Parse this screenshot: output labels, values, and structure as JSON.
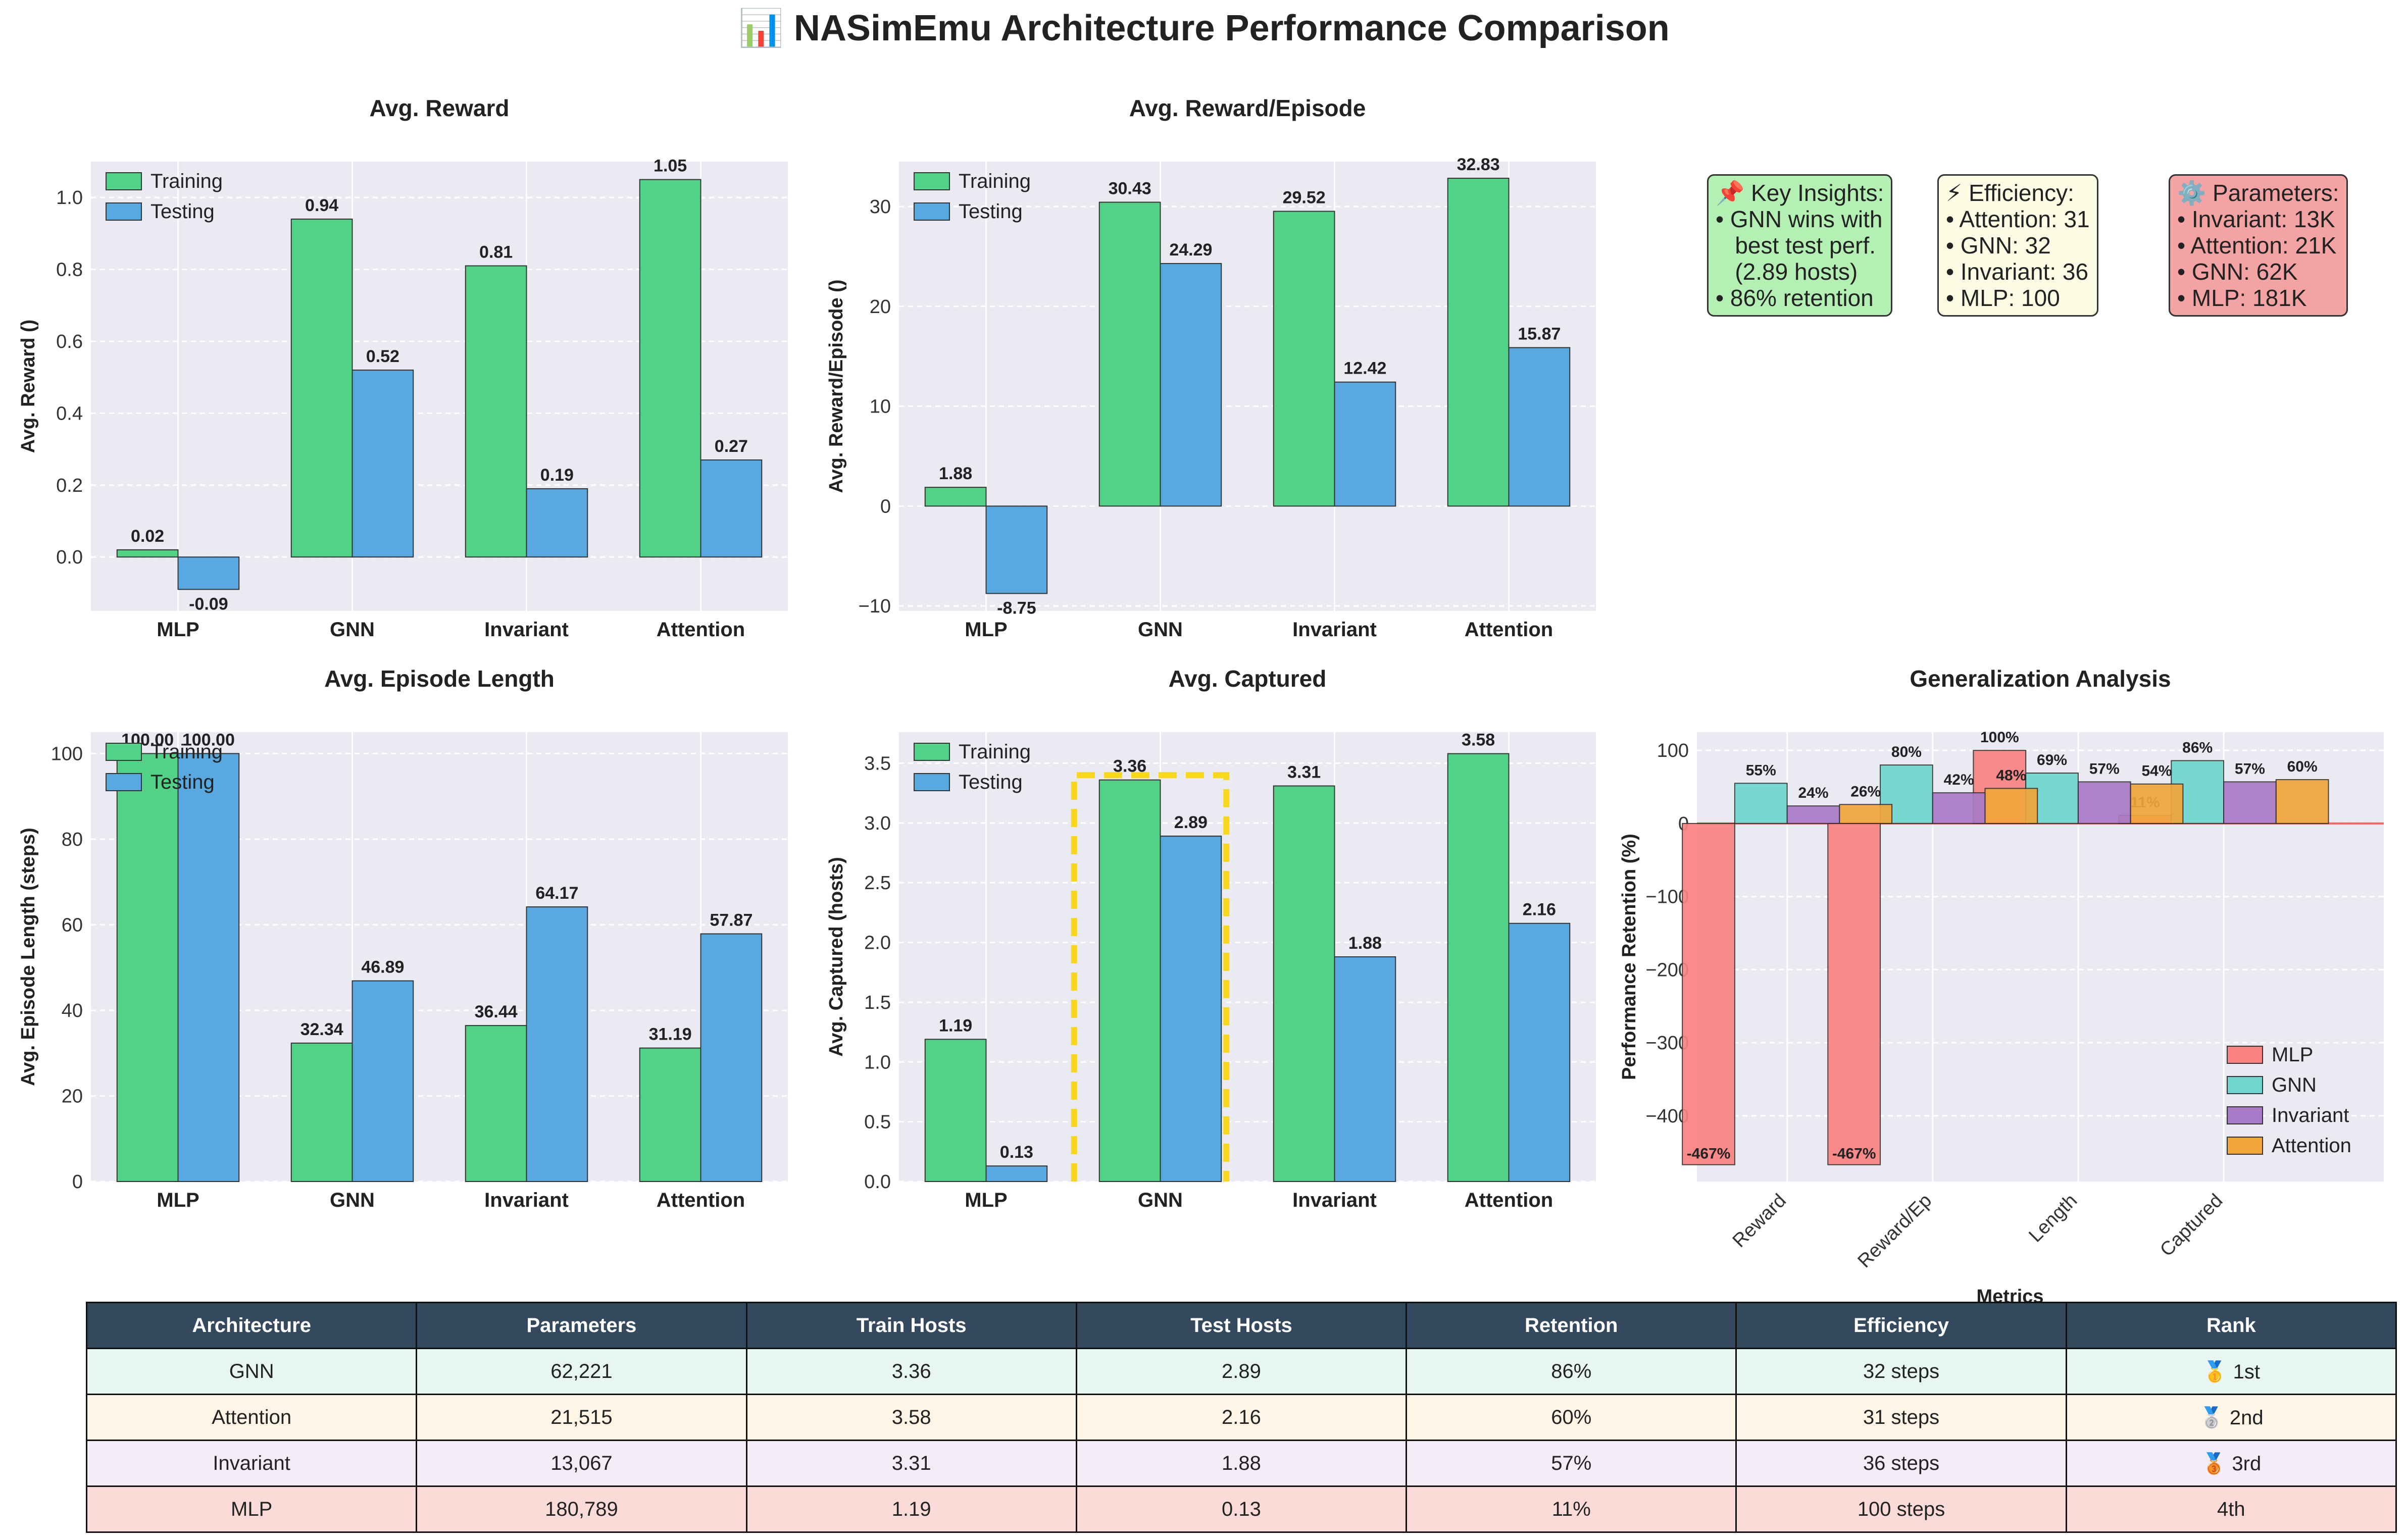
{
  "figure_title": "📊 NASimEmu Architecture Performance Comparison",
  "colors": {
    "training": "#52d287",
    "testing": "#5aa8e0",
    "mlp": "#fb8282",
    "gnn": "#6fd6cf",
    "invariant": "#a97ac7",
    "attention": "#f2a53b",
    "highlight": "#f9d71c",
    "plot_bg": "#eaeaf2",
    "header_bg": "#34495e"
  },
  "chart_data": [
    {
      "id": "avg_reward",
      "type": "bar",
      "title": "Avg. Reward",
      "ylabel": "Avg. Reward ()",
      "categories": [
        "MLP",
        "GNN",
        "Invariant",
        "Attention"
      ],
      "series": [
        {
          "name": "Training",
          "values": [
            0.02,
            0.94,
            0.81,
            1.05
          ]
        },
        {
          "name": "Testing",
          "values": [
            -0.09,
            0.52,
            0.19,
            0.27
          ]
        }
      ],
      "ylim": [
        -0.15,
        1.1
      ],
      "yticks": [
        0.0,
        0.2,
        0.4,
        0.6,
        0.8,
        1.0
      ],
      "ytick_labels": [
        "0.0",
        "0.2",
        "0.4",
        "0.6",
        "0.8",
        "1.0"
      ],
      "labels": [
        [
          "0.02",
          "0.94",
          "0.81",
          "1.05"
        ],
        [
          "-0.09",
          "0.52",
          "0.19",
          "0.27"
        ]
      ],
      "legend": "top-left",
      "grid": true
    },
    {
      "id": "avg_reward_episode",
      "type": "bar",
      "title": "Avg. Reward/Episode",
      "ylabel": "Avg. Reward/Episode ()",
      "categories": [
        "MLP",
        "GNN",
        "Invariant",
        "Attention"
      ],
      "series": [
        {
          "name": "Training",
          "values": [
            1.88,
            30.43,
            29.52,
            32.83
          ]
        },
        {
          "name": "Testing",
          "values": [
            -8.75,
            24.29,
            12.42,
            15.87
          ]
        }
      ],
      "ylim": [
        -10.5,
        34.5
      ],
      "yticks": [
        -10,
        0,
        10,
        20,
        30
      ],
      "ytick_labels": [
        "−10",
        "0",
        "10",
        "20",
        "30"
      ],
      "labels": [
        [
          "1.88",
          "30.43",
          "29.52",
          "32.83"
        ],
        [
          "-8.75",
          "24.29",
          "12.42",
          "15.87"
        ]
      ],
      "legend": "top-left",
      "grid": true
    },
    {
      "id": "avg_episode_length",
      "type": "bar",
      "title": "Avg. Episode Length",
      "ylabel": "Avg. Episode Length (steps)",
      "categories": [
        "MLP",
        "GNN",
        "Invariant",
        "Attention"
      ],
      "series": [
        {
          "name": "Training",
          "values": [
            100.0,
            32.34,
            36.44,
            31.19
          ]
        },
        {
          "name": "Testing",
          "values": [
            100.0,
            46.89,
            64.17,
            57.87
          ]
        }
      ],
      "ylim": [
        0,
        105
      ],
      "yticks": [
        0,
        20,
        40,
        60,
        80,
        100
      ],
      "ytick_labels": [
        "0",
        "20",
        "40",
        "60",
        "80",
        "100"
      ],
      "labels": [
        [
          "100.00",
          "32.34",
          "36.44",
          "31.19"
        ],
        [
          "100.00",
          "46.89",
          "64.17",
          "57.87"
        ]
      ],
      "legend": "top-left",
      "grid": true
    },
    {
      "id": "avg_captured",
      "type": "bar",
      "title": "Avg. Captured",
      "ylabel": "Avg. Captured (hosts)",
      "categories": [
        "MLP",
        "GNN",
        "Invariant",
        "Attention"
      ],
      "series": [
        {
          "name": "Training",
          "values": [
            1.19,
            3.36,
            3.31,
            3.58
          ]
        },
        {
          "name": "Testing",
          "values": [
            0.13,
            2.89,
            1.88,
            2.16
          ]
        }
      ],
      "ylim": [
        0,
        3.76
      ],
      "yticks": [
        0.0,
        0.5,
        1.0,
        1.5,
        2.0,
        2.5,
        3.0,
        3.5
      ],
      "ytick_labels": [
        "0.0",
        "0.5",
        "1.0",
        "1.5",
        "2.0",
        "2.5",
        "3.0",
        "3.5"
      ],
      "labels": [
        [
          "1.19",
          "3.36",
          "3.31",
          "3.58"
        ],
        [
          "0.13",
          "2.89",
          "1.88",
          "2.16"
        ]
      ],
      "highlight_category": "GNN",
      "highlight_top": 3.4,
      "legend": "top-left",
      "grid": true
    },
    {
      "id": "generalization",
      "type": "bar",
      "title": "Generalization Analysis",
      "xlabel": "Metrics",
      "ylabel": "Performance Retention (%)",
      "categories": [
        "Reward",
        "Reward/Ep",
        "Length",
        "Captured"
      ],
      "series": [
        {
          "name": "MLP",
          "values": [
            -467,
            -467,
            100,
            11
          ]
        },
        {
          "name": "GNN",
          "values": [
            55,
            80,
            69,
            86
          ]
        },
        {
          "name": "Invariant",
          "values": [
            24,
            42,
            57,
            57
          ]
        },
        {
          "name": "Attention",
          "values": [
            26,
            48,
            54,
            60
          ]
        }
      ],
      "labels": [
        [
          "-467%",
          "-467%",
          "100%",
          "11%"
        ],
        [
          "55%",
          "80%",
          "69%",
          "86%"
        ],
        [
          "24%",
          "42%",
          "57%",
          "57%"
        ],
        [
          "26%",
          "48%",
          "54%",
          "60%"
        ]
      ],
      "ylim": [
        -490,
        125
      ],
      "yticks": [
        -400,
        -300,
        -200,
        -100,
        0,
        100
      ],
      "ytick_labels": [
        "−400",
        "−300",
        "−200",
        "−100",
        "0",
        "100"
      ],
      "reference_line": 0,
      "legend": "bottom-right",
      "grid": true
    }
  ],
  "insight_boxes": {
    "key_insights": "📌 Key Insights:\n• GNN wins with\n   best test perf.\n   (2.89 hosts)\n• 86% retention",
    "efficiency": "⚡ Efficiency:\n• Attention: 31\n• GNN: 32\n• Invariant: 36\n• MLP: 100",
    "parameters": "⚙️ Parameters:\n• Invariant: 13K\n• Attention: 21K\n• GNN: 62K\n• MLP: 181K"
  },
  "table": {
    "headers": [
      "Architecture",
      "Parameters",
      "Train Hosts",
      "Test Hosts",
      "Retention",
      "Efficiency",
      "Rank"
    ],
    "rows": [
      {
        "cells": [
          "GNN",
          "62,221",
          "3.36",
          "2.89",
          "86%",
          "32 steps",
          "🥇 1st"
        ],
        "bg": "#e8f6f3"
      },
      {
        "cells": [
          "Attention",
          "21,515",
          "3.58",
          "2.16",
          "60%",
          "31 steps",
          "🥈 2nd"
        ],
        "bg": "#fef5e7"
      },
      {
        "cells": [
          "Invariant",
          "13,067",
          "3.31",
          "1.88",
          "57%",
          "36 steps",
          "🥉 3rd"
        ],
        "bg": "#f4ecf7"
      },
      {
        "cells": [
          "MLP",
          "180,789",
          "1.19",
          "0.13",
          "11%",
          "100 steps",
          "4th"
        ],
        "bg": "#fadbd8"
      }
    ]
  }
}
